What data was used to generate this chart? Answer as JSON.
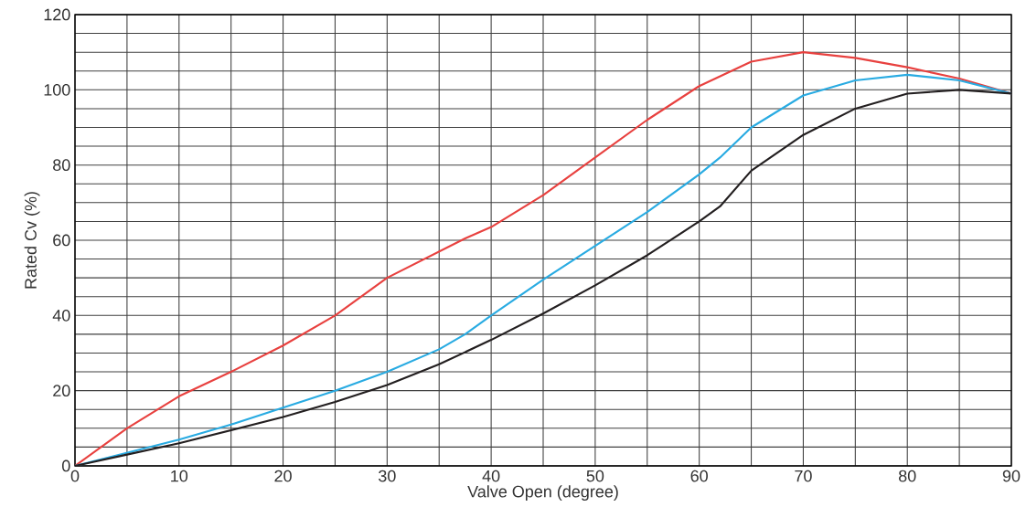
{
  "chart_data": {
    "type": "line",
    "xlabel": "Valve Open (degree)",
    "ylabel": "Rated Cv (%)",
    "xlim": [
      0,
      90
    ],
    "ylim": [
      0,
      120
    ],
    "xticks": [
      0,
      {
        "value": 5,
        "label": null
      },
      10,
      {
        "value": 15,
        "label": null
      },
      20,
      {
        "value": 25,
        "label": null
      },
      30,
      {
        "value": 35,
        "label": null
      },
      40,
      {
        "value": 45,
        "label": null
      },
      50,
      {
        "value": 55,
        "label": null
      },
      60,
      {
        "value": 65,
        "label": null
      },
      70,
      {
        "value": 75,
        "label": null
      },
      80,
      {
        "value": 85,
        "label": null
      },
      90
    ],
    "yticks": [
      0,
      {
        "value": 5,
        "label": null
      },
      {
        "value": 10,
        "label": null
      },
      {
        "value": 15,
        "label": null
      },
      20,
      {
        "value": 25,
        "label": null
      },
      {
        "value": 30,
        "label": null
      },
      {
        "value": 35,
        "label": null
      },
      40,
      {
        "value": 45,
        "label": null
      },
      {
        "value": 50,
        "label": null
      },
      {
        "value": 55,
        "label": null
      },
      60,
      {
        "value": 65,
        "label": null
      },
      {
        "value": 70,
        "label": null
      },
      {
        "value": 75,
        "label": null
      },
      80,
      {
        "value": 85,
        "label": null
      },
      {
        "value": 90,
        "label": null
      },
      {
        "value": 95,
        "label": null
      },
      100,
      {
        "value": 105,
        "label": null
      },
      {
        "value": 110,
        "label": null
      },
      {
        "value": 115,
        "label": null
      },
      120
    ],
    "grid": true,
    "marker": "none",
    "line_style": "solid",
    "series": [
      {
        "color": "#e8413f",
        "x": [
          0,
          5,
          10,
          15,
          20,
          25,
          30,
          35,
          37.5,
          40,
          45,
          50,
          55,
          60,
          65,
          70,
          75,
          80,
          85,
          90
        ],
        "values": [
          0,
          10,
          18.5,
          25,
          32,
          40,
          50,
          57,
          60.5,
          63.5,
          72,
          82,
          92,
          101,
          107.5,
          110,
          108.5,
          106,
          103,
          99
        ]
      },
      {
        "color": "#29abe2",
        "x": [
          0,
          5,
          10,
          15,
          20,
          25,
          30,
          35,
          37.5,
          40,
          45,
          50,
          55,
          60,
          62,
          65,
          70,
          75,
          80,
          85,
          90
        ],
        "values": [
          0,
          3.5,
          7,
          11,
          15.5,
          20,
          25,
          31,
          35,
          40,
          49.5,
          58.5,
          67.5,
          77.5,
          82,
          90,
          98.5,
          102.5,
          104,
          102.5,
          99
        ]
      },
      {
        "color": "#231f20",
        "x": [
          0,
          5,
          10,
          15,
          20,
          25,
          30,
          35,
          40,
          45,
          50,
          55,
          60,
          62,
          65,
          70,
          75,
          80,
          85,
          90
        ],
        "values": [
          0,
          3,
          6,
          9.5,
          13,
          17,
          21.5,
          27,
          33.5,
          40.5,
          48,
          56,
          65,
          69,
          78.5,
          88,
          95,
          99,
          100,
          99
        ]
      }
    ]
  }
}
